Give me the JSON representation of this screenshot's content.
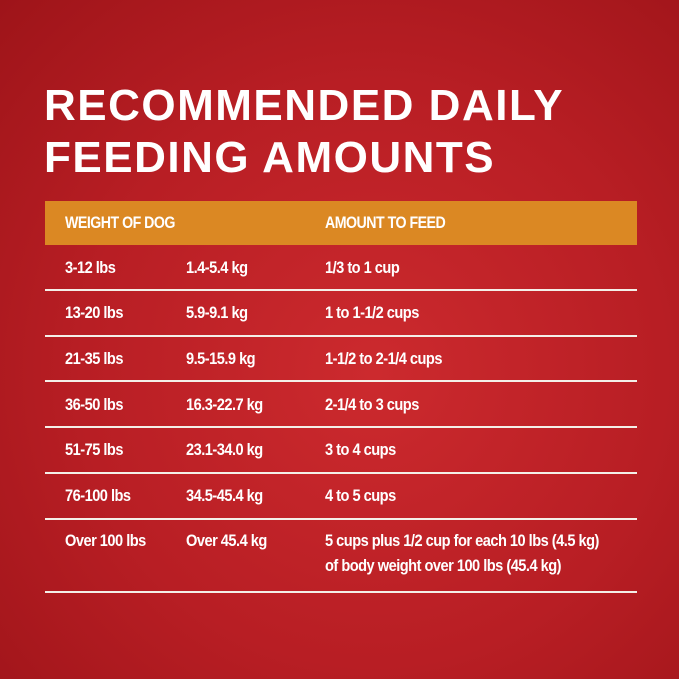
{
  "title": {
    "line1": "RECOMMENDED DAILY",
    "line2": "FEEDING AMOUNTS"
  },
  "colors": {
    "background": "#b81e24",
    "header": "#db8823",
    "text": "#ffffff"
  },
  "table": {
    "headers": {
      "weight": "WEIGHT OF DOG",
      "amount": "AMOUNT TO FEED"
    },
    "rows": [
      {
        "lbs": "3-12 lbs",
        "kg": "1.4-5.4 kg",
        "amount": "1/3 to 1 cup"
      },
      {
        "lbs": "13-20 lbs",
        "kg": "5.9-9.1 kg",
        "amount": "1 to 1-1/2 cups"
      },
      {
        "lbs": "21-35 lbs",
        "kg": "9.5-15.9 kg",
        "amount": "1-1/2 to 2-1/4 cups"
      },
      {
        "lbs": "36-50 lbs",
        "kg": "16.3-22.7 kg",
        "amount": "2-1/4 to 3 cups"
      },
      {
        "lbs": "51-75 lbs",
        "kg": "23.1-34.0 kg",
        "amount": "3 to 4 cups"
      },
      {
        "lbs": "76-100 lbs",
        "kg": "34.5-45.4 kg",
        "amount": "4 to 5 cups"
      },
      {
        "lbs": "Over 100 lbs",
        "kg": "Over 45.4 kg",
        "amount": "5 cups plus 1/2 cup for each 10 lbs (4.5 kg)",
        "amount_line2": "of body weight over 100 lbs (45.4 kg)"
      }
    ]
  }
}
